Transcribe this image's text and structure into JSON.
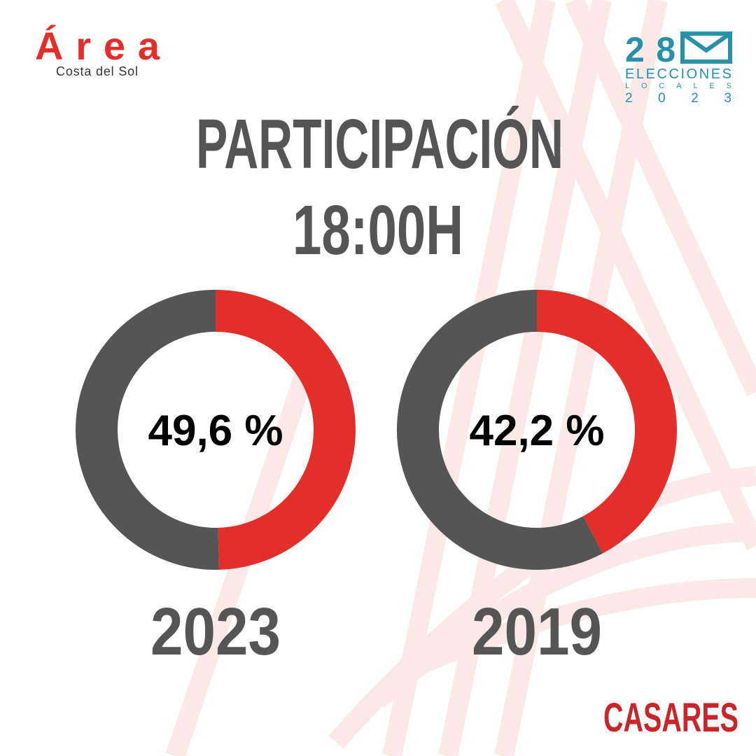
{
  "header": {
    "brand": "Área",
    "brand_sub": "Costa del Sol",
    "election_day": "28",
    "election_line1": "ELECCIONES",
    "election_line2": "LOCALES",
    "election_year": "2023"
  },
  "headline": {
    "line1": "PARTICIPACIÓN",
    "line2": "18:00H"
  },
  "footer": {
    "place": "CASARES"
  },
  "chart_data": [
    {
      "type": "pie",
      "donut": true,
      "title": "2023",
      "values": [
        49.6,
        50.4
      ],
      "value_labels": [
        "49,6 %",
        null
      ],
      "colors": [
        "#e42e29",
        "#555555"
      ]
    },
    {
      "type": "pie",
      "donut": true,
      "title": "2019",
      "values": [
        42.2,
        57.8
      ],
      "value_labels": [
        "42,2 %",
        null
      ],
      "colors": [
        "#e42e29",
        "#555555"
      ]
    }
  ]
}
